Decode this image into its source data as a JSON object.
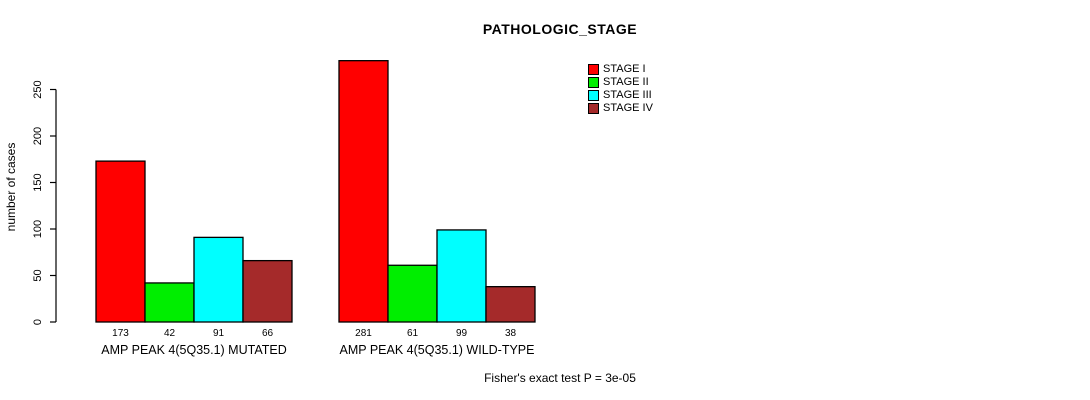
{
  "chart_data": {
    "type": "bar",
    "title": "PATHOLOGIC_STAGE",
    "ylabel": "number of cases",
    "xlabel": "",
    "footer": "Fisher's exact test P = 3e-05",
    "groups": [
      "AMP PEAK 4(5Q35.1) MUTATED",
      "AMP PEAK 4(5Q35.1) WILD-TYPE"
    ],
    "series": [
      {
        "name": "STAGE I",
        "color": "#FF0000",
        "values": [
          173,
          281
        ]
      },
      {
        "name": "STAGE II",
        "color": "#00EE00",
        "values": [
          42,
          61
        ]
      },
      {
        "name": "STAGE III",
        "color": "#00FFFF",
        "values": [
          91,
          99
        ]
      },
      {
        "name": "STAGE IV",
        "color": "#A52A2A",
        "values": [
          66,
          38
        ]
      }
    ],
    "yticks": [
      0,
      50,
      100,
      150,
      200,
      250
    ],
    "ylim": [
      0,
      290
    ],
    "show_bar_values": true,
    "grid": false,
    "legend_position": "top-center-right",
    "bar_border_color": "#000000",
    "background_color": "#FFFFFF"
  }
}
